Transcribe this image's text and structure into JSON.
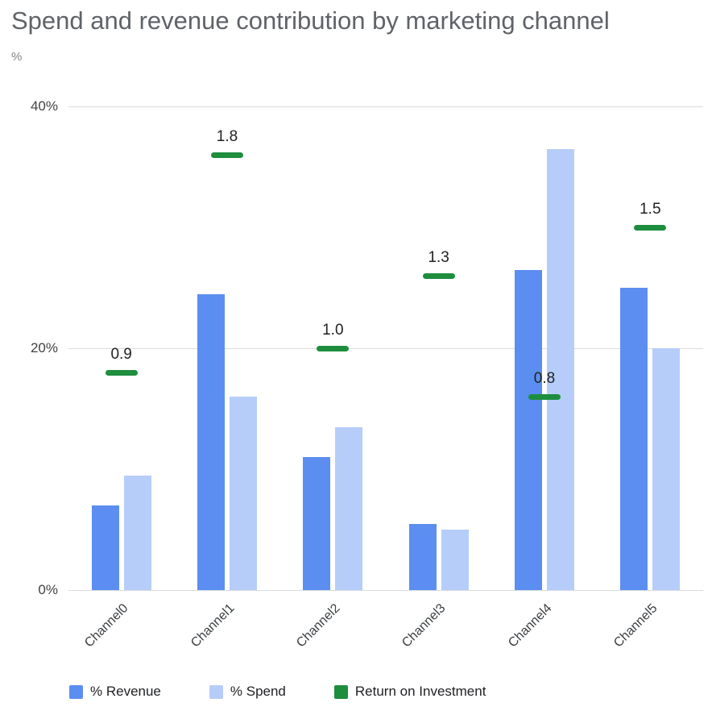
{
  "title": "Spend and revenue contribution by marketing channel",
  "axis": {
    "y_title": "%",
    "y_max": 40,
    "y_tick_values": [
      40,
      20,
      0
    ],
    "y_tick_labels": [
      "40%",
      "20%",
      "0%"
    ]
  },
  "colors": {
    "revenue_bar": "#5b8ef0",
    "spend_bar": "#b6cdfa",
    "roi_marker": "#1e8e3e",
    "title_text": "#5f6368",
    "unit_text": "#80868b",
    "axis_label_text": "#3c4043",
    "roi_label_text": "#202124",
    "gridline": "#dadce0"
  },
  "legend": [
    {
      "label": "% Revenue",
      "color_key": "revenue_bar"
    },
    {
      "label": "% Spend",
      "color_key": "spend_bar"
    },
    {
      "label": "Return on Investment",
      "color_key": "roi_marker"
    }
  ],
  "chart_data": {
    "type": "bar",
    "title": "Spend and revenue contribution by marketing channel",
    "ylabel": "%",
    "ylim": [
      0,
      40
    ],
    "grid": true,
    "legend_position": "bottom",
    "categories": [
      "Channel0",
      "Channel1",
      "Channel2",
      "Channel3",
      "Channel4",
      "Channel5"
    ],
    "series": [
      {
        "name": "% Revenue",
        "type": "bar",
        "values": [
          7,
          24.5,
          11,
          5.5,
          26.5,
          25
        ]
      },
      {
        "name": "% Spend",
        "type": "bar",
        "values": [
          9.5,
          16,
          13.5,
          5,
          36.5,
          20
        ]
      },
      {
        "name": "Return on Investment",
        "type": "dash-marker",
        "values": [
          0.9,
          1.8,
          1.0,
          1.3,
          0.8,
          1.5
        ],
        "plotted_at_left_axis_pct": [
          18,
          36,
          20,
          26,
          16,
          30
        ]
      }
    ]
  }
}
